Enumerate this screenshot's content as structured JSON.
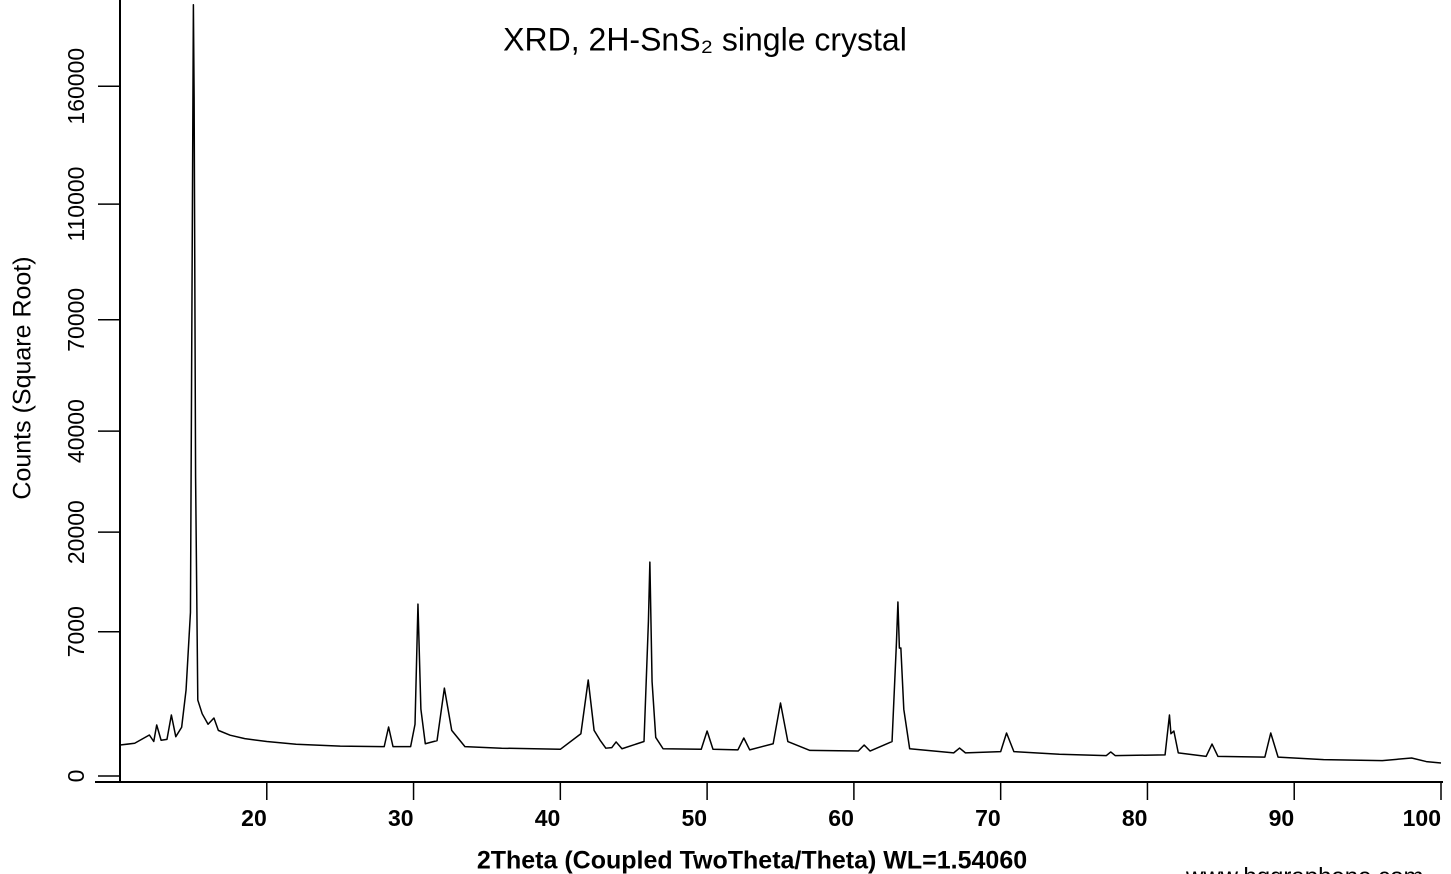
{
  "chart_data": {
    "type": "line",
    "title": "XRD, 2H-SnS₂ single crystal",
    "x_label": "2Theta (Coupled TwoTheta/Theta) WL=1.54060",
    "y_label": "Counts (Square Root)",
    "watermark": "www.hqgraphene.com",
    "y_scale": "sqrt",
    "color": "#000000",
    "xlim": [
      10,
      100
    ],
    "xticks": [
      20,
      30,
      40,
      50,
      60,
      70,
      80,
      90,
      100
    ],
    "ylim": [
      0,
      202500
    ],
    "yticks": [
      0,
      7000,
      20000,
      40000,
      70000,
      110000,
      160000
    ],
    "x": [
      10,
      11,
      12,
      12.3,
      12.5,
      12.8,
      13.2,
      13.5,
      13.8,
      14.2,
      14.5,
      14.8,
      15.0,
      15.05,
      15.15,
      15.3,
      15.6,
      16.0,
      16.4,
      16.7,
      17.5,
      18.5,
      20,
      22,
      25,
      28,
      28.3,
      28.6,
      29.8,
      30.1,
      30.3,
      30.5,
      30.8,
      31.6,
      32.1,
      32.6,
      33.5,
      36,
      40,
      41.4,
      41.9,
      42.3,
      42.7,
      43.1,
      43.5,
      43.8,
      44.2,
      45.7,
      46.0,
      46.1,
      46.25,
      46.5,
      47,
      49.6,
      50.0,
      50.4,
      52.1,
      52.5,
      52.9,
      54.5,
      55.0,
      55.5,
      57,
      60.3,
      60.7,
      61.1,
      62.6,
      62.9,
      63.0,
      63.1,
      63.2,
      63.4,
      63.8,
      66.8,
      67.2,
      67.6,
      70.0,
      70.4,
      70.9,
      74,
      77.2,
      77.5,
      77.8,
      81.2,
      81.5,
      81.6,
      81.8,
      82.1,
      84.0,
      84.4,
      84.8,
      88.0,
      88.4,
      88.9,
      92,
      96,
      98,
      99,
      100
    ],
    "values": [
      323,
      360,
      565,
      400,
      874,
      430,
      450,
      1250,
      520,
      800,
      2485,
      9000,
      200000,
      155000,
      30000,
      1940,
      1300,
      900,
      1130,
      700,
      560,
      470,
      400,
      340,
      300,
      290,
      807,
      290,
      290,
      900,
      9940,
      1500,
      350,
      420,
      2600,
      700,
      290,
      260,
      240,
      600,
      3100,
      700,
      435,
      260,
      270,
      390,
      250,
      400,
      8000,
      15390,
      3000,
      500,
      250,
      240,
      680,
      240,
      230,
      485,
      230,
      350,
      1790,
      400,
      220,
      210,
      323,
      210,
      400,
      6000,
      10180,
      5500,
      5505,
      1500,
      250,
      180,
      263,
      180,
      200,
      621,
      200,
      160,
      140,
      194,
      140,
      150,
      1250,
      600,
      680,
      180,
      130,
      344,
      130,
      120,
      621,
      120,
      90,
      80,
      109,
      70,
      57
    ]
  }
}
